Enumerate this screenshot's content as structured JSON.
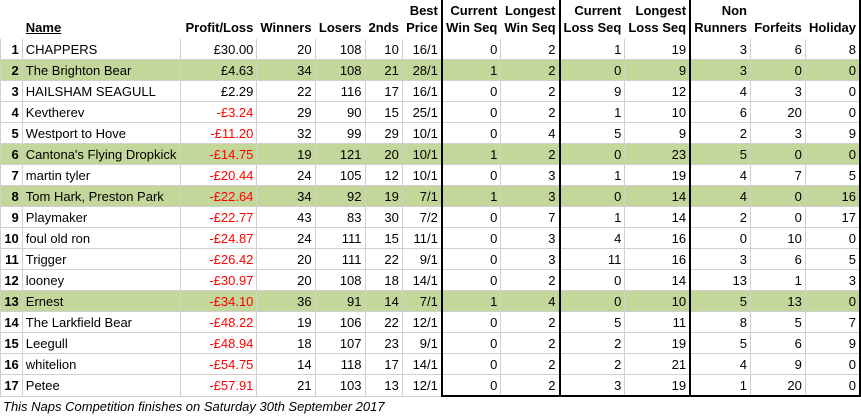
{
  "headers": {
    "row1": {
      "name": "",
      "pl": "",
      "winners": "",
      "losers": "",
      "seconds": "",
      "best": "Best",
      "cws": "Current",
      "lws": "Longest",
      "cls": "Current",
      "lls": "Longest",
      "non": "Non",
      "forfeits": "",
      "holiday": ""
    },
    "row2": {
      "name": "Name",
      "pl": "Profit/Loss",
      "winners": "Winners",
      "losers": "Losers",
      "seconds": "2nds",
      "best": "Price",
      "cws": "Win Seq",
      "lws": "Win Seq",
      "cls": "Loss Seq",
      "lls": "Loss Seq",
      "non": "Runners",
      "forfeits": "Forfeits",
      "holiday": "Holiday"
    }
  },
  "rows": [
    {
      "pos": "1",
      "name": "CHAPPERS",
      "pl": "£30.00",
      "winners": "20",
      "losers": "108",
      "seconds": "10",
      "best": "16/1",
      "cws": "0",
      "lws": "2",
      "cls": "1",
      "lls": "19",
      "non": "3",
      "forfeits": "6",
      "holiday": "8",
      "hl": false,
      "neg": false
    },
    {
      "pos": "2",
      "name": "The Brighton Bear",
      "pl": "£4.63",
      "winners": "34",
      "losers": "108",
      "seconds": "21",
      "best": "28/1",
      "cws": "1",
      "lws": "2",
      "cls": "0",
      "lls": "9",
      "non": "3",
      "forfeits": "0",
      "holiday": "0",
      "hl": true,
      "neg": false
    },
    {
      "pos": "3",
      "name": "HAILSHAM SEAGULL",
      "pl": "£2.29",
      "winners": "22",
      "losers": "116",
      "seconds": "17",
      "best": "16/1",
      "cws": "0",
      "lws": "2",
      "cls": "9",
      "lls": "12",
      "non": "4",
      "forfeits": "3",
      "holiday": "0",
      "hl": false,
      "neg": false
    },
    {
      "pos": "4",
      "name": "Kevtherev",
      "pl": "-£3.24",
      "winners": "29",
      "losers": "90",
      "seconds": "15",
      "best": "25/1",
      "cws": "0",
      "lws": "2",
      "cls": "1",
      "lls": "10",
      "non": "6",
      "forfeits": "20",
      "holiday": "0",
      "hl": false,
      "neg": true
    },
    {
      "pos": "5",
      "name": "Westport to Hove",
      "pl": "-£11.20",
      "winners": "32",
      "losers": "99",
      "seconds": "29",
      "best": "10/1",
      "cws": "0",
      "lws": "4",
      "cls": "5",
      "lls": "9",
      "non": "2",
      "forfeits": "3",
      "holiday": "9",
      "hl": false,
      "neg": true
    },
    {
      "pos": "6",
      "name": "Cantona's Flying Dropkick",
      "pl": "-£14.75",
      "winners": "19",
      "losers": "121",
      "seconds": "20",
      "best": "10/1",
      "cws": "1",
      "lws": "2",
      "cls": "0",
      "lls": "23",
      "non": "5",
      "forfeits": "0",
      "holiday": "0",
      "hl": true,
      "neg": true
    },
    {
      "pos": "7",
      "name": "martin tyler",
      "pl": "-£20.44",
      "winners": "24",
      "losers": "105",
      "seconds": "12",
      "best": "10/1",
      "cws": "0",
      "lws": "3",
      "cls": "1",
      "lls": "19",
      "non": "4",
      "forfeits": "7",
      "holiday": "5",
      "hl": false,
      "neg": true
    },
    {
      "pos": "8",
      "name": "Tom Hark, Preston Park",
      "pl": "-£22.64",
      "winners": "34",
      "losers": "92",
      "seconds": "19",
      "best": "7/1",
      "cws": "1",
      "lws": "3",
      "cls": "0",
      "lls": "14",
      "non": "4",
      "forfeits": "0",
      "holiday": "16",
      "hl": true,
      "neg": true
    },
    {
      "pos": "9",
      "name": "Playmaker",
      "pl": "-£22.77",
      "winners": "43",
      "losers": "83",
      "seconds": "30",
      "best": "7/2",
      "cws": "0",
      "lws": "7",
      "cls": "1",
      "lls": "14",
      "non": "2",
      "forfeits": "0",
      "holiday": "17",
      "hl": false,
      "neg": true
    },
    {
      "pos": "10",
      "name": "foul old ron",
      "pl": "-£24.87",
      "winners": "24",
      "losers": "111",
      "seconds": "15",
      "best": "11/1",
      "cws": "0",
      "lws": "3",
      "cls": "4",
      "lls": "16",
      "non": "0",
      "forfeits": "10",
      "holiday": "0",
      "hl": false,
      "neg": true
    },
    {
      "pos": "11",
      "name": "Trigger",
      "pl": "-£26.42",
      "winners": "20",
      "losers": "111",
      "seconds": "22",
      "best": "9/1",
      "cws": "0",
      "lws": "3",
      "cls": "11",
      "lls": "16",
      "non": "3",
      "forfeits": "6",
      "holiday": "5",
      "hl": false,
      "neg": true
    },
    {
      "pos": "12",
      "name": "looney",
      "pl": "-£30.97",
      "winners": "20",
      "losers": "108",
      "seconds": "18",
      "best": "14/1",
      "cws": "0",
      "lws": "2",
      "cls": "0",
      "lls": "14",
      "non": "13",
      "forfeits": "1",
      "holiday": "3",
      "hl": false,
      "neg": true
    },
    {
      "pos": "13",
      "name": "Ernest",
      "pl": "-£34.10",
      "winners": "36",
      "losers": "91",
      "seconds": "14",
      "best": "7/1",
      "cws": "1",
      "lws": "4",
      "cls": "0",
      "lls": "10",
      "non": "5",
      "forfeits": "13",
      "holiday": "0",
      "hl": true,
      "neg": true
    },
    {
      "pos": "14",
      "name": "The Larkfield Bear",
      "pl": "-£48.22",
      "winners": "19",
      "losers": "106",
      "seconds": "22",
      "best": "12/1",
      "cws": "0",
      "lws": "2",
      "cls": "5",
      "lls": "11",
      "non": "8",
      "forfeits": "5",
      "holiday": "7",
      "hl": false,
      "neg": true
    },
    {
      "pos": "15",
      "name": "Leegull",
      "pl": "-£48.94",
      "winners": "18",
      "losers": "107",
      "seconds": "23",
      "best": "9/1",
      "cws": "0",
      "lws": "2",
      "cls": "2",
      "lls": "19",
      "non": "5",
      "forfeits": "6",
      "holiday": "9",
      "hl": false,
      "neg": true
    },
    {
      "pos": "16",
      "name": "whitelion",
      "pl": "-£54.75",
      "winners": "14",
      "losers": "118",
      "seconds": "17",
      "best": "14/1",
      "cws": "0",
      "lws": "2",
      "cls": "2",
      "lls": "21",
      "non": "4",
      "forfeits": "9",
      "holiday": "0",
      "hl": false,
      "neg": true
    },
    {
      "pos": "17",
      "name": "Petee",
      "pl": "-£57.91",
      "winners": "21",
      "losers": "103",
      "seconds": "13",
      "best": "12/1",
      "cws": "0",
      "lws": "2",
      "cls": "3",
      "lls": "19",
      "non": "1",
      "forfeits": "20",
      "holiday": "0",
      "hl": false,
      "neg": true
    }
  ],
  "footer": "This Naps Competition finishes on Saturday 30th September 2017"
}
